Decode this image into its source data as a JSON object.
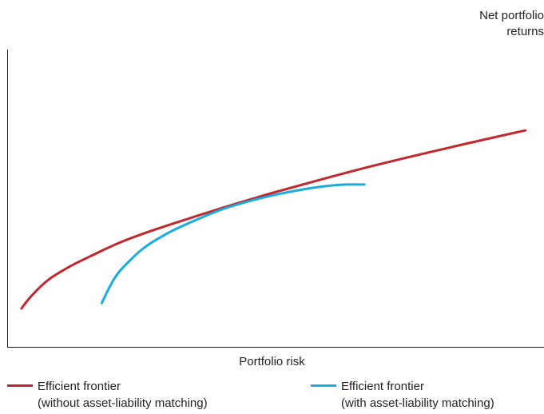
{
  "chart_data": {
    "type": "line",
    "title": "",
    "xlabel": "Portfolio risk",
    "ylabel": "Net portfolio\nreturns",
    "xlim": [
      0,
      100
    ],
    "ylim": [
      0,
      100
    ],
    "grid": false,
    "legend_position": "bottom",
    "series": [
      {
        "name": "Efficient frontier\n(without asset-liability matching)",
        "color": "#c0282d",
        "x": [
          2.5,
          4.5,
          7.5,
          11.5,
          15.5,
          21.0,
          27.5,
          34.5,
          41.5,
          49.0,
          57.0,
          65.5,
          74.0,
          82.5,
          90.5,
          96.5
        ],
        "y": [
          12.9,
          17.4,
          22.5,
          27.0,
          30.6,
          35.2,
          39.5,
          43.6,
          47.6,
          51.6,
          55.6,
          59.7,
          63.5,
          67.1,
          70.4,
          72.8
        ]
      },
      {
        "name": "Efficient frontier\n(with asset-liability matching)",
        "color": "#1bacdf",
        "x": [
          17.5,
          19.0,
          20.5,
          22.5,
          25.0,
          28.0,
          31.5,
          35.5,
          40.0,
          45.0,
          50.5,
          55.5,
          60.0,
          63.0,
          66.5
        ],
        "y": [
          14.7,
          20.3,
          24.7,
          28.6,
          32.8,
          36.4,
          39.8,
          43.0,
          46.3,
          49.0,
          51.4,
          53.1,
          54.2,
          54.6,
          54.6
        ]
      }
    ]
  }
}
